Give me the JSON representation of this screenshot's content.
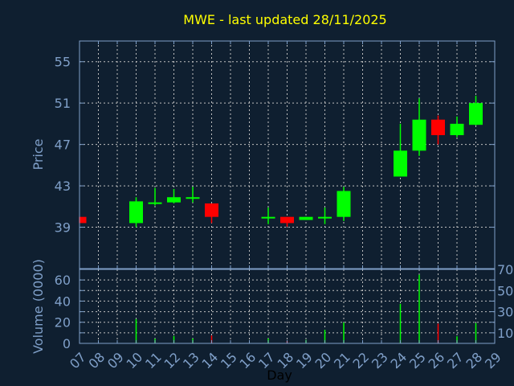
{
  "chart_data": [
    {
      "type": "candlestick",
      "title": "MWE - last updated 28/11/2025",
      "xlabel": "",
      "ylabel": "Price",
      "ylim": [
        35,
        57
      ],
      "yticks": [
        39,
        43,
        47,
        51,
        55
      ],
      "xlim": [
        7,
        29
      ],
      "grid": true,
      "colors": {
        "up": "#00ff00",
        "down": "#ff0000"
      },
      "candles": [
        {
          "day": 7,
          "open": 40.0,
          "high": 40.0,
          "low": 39.4,
          "close": 39.4
        },
        {
          "day": 10,
          "open": 39.4,
          "high": 41.9,
          "low": 39.0,
          "close": 41.5
        },
        {
          "day": 11,
          "open": 41.3,
          "high": 42.8,
          "low": 41.1,
          "close": 41.4
        },
        {
          "day": 12,
          "open": 41.4,
          "high": 42.7,
          "low": 41.3,
          "close": 41.9
        },
        {
          "day": 13,
          "open": 41.8,
          "high": 42.9,
          "low": 41.4,
          "close": 41.9
        },
        {
          "day": 14,
          "open": 41.3,
          "high": 41.3,
          "low": 39.4,
          "close": 40.0
        },
        {
          "day": 17,
          "open": 39.9,
          "high": 40.9,
          "low": 39.3,
          "close": 40.0
        },
        {
          "day": 18,
          "open": 40.0,
          "high": 40.0,
          "low": 39.05,
          "close": 39.4
        },
        {
          "day": 19,
          "open": 39.7,
          "high": 40.0,
          "low": 39.7,
          "close": 40.0
        },
        {
          "day": 20,
          "open": 39.9,
          "high": 40.9,
          "low": 39.3,
          "close": 40.0
        },
        {
          "day": 21,
          "open": 40.0,
          "high": 42.9,
          "low": 39.6,
          "close": 42.5
        },
        {
          "day": 24,
          "open": 43.9,
          "high": 49.0,
          "low": 43.9,
          "close": 46.4
        },
        {
          "day": 25,
          "open": 46.4,
          "high": 51.45,
          "low": 45.9,
          "close": 49.4
        },
        {
          "day": 26,
          "open": 49.4,
          "high": 49.8,
          "low": 47.0,
          "close": 47.9
        },
        {
          "day": 27,
          "open": 47.9,
          "high": 49.7,
          "low": 47.7,
          "close": 49.0
        },
        {
          "day": 28,
          "open": 48.9,
          "high": 51.7,
          "low": 48.85,
          "close": 51.0
        }
      ]
    },
    {
      "type": "bar",
      "xlabel": "Day",
      "ylabel": "Volume (0000)",
      "ylim": [
        0,
        70
      ],
      "yticks": [
        0,
        10,
        20,
        30,
        40,
        50,
        60,
        70
      ],
      "xticks": [
        "07",
        "08",
        "09",
        "10",
        "11",
        "12",
        "13",
        "14",
        "15",
        "16",
        "17",
        "18",
        "19",
        "20",
        "21",
        "22",
        "23",
        "24",
        "25",
        "26",
        "27",
        "28",
        "29"
      ],
      "bars": [
        {
          "day": 10,
          "value": 23,
          "dir": "up"
        },
        {
          "day": 11,
          "value": 4.4,
          "dir": "up"
        },
        {
          "day": 12,
          "value": 7,
          "dir": "up"
        },
        {
          "day": 13,
          "value": 4.6,
          "dir": "up"
        },
        {
          "day": 14,
          "value": 7.4,
          "dir": "down"
        },
        {
          "day": 17,
          "value": 4.6,
          "dir": "up"
        },
        {
          "day": 18,
          "value": 2.3,
          "dir": "down"
        },
        {
          "day": 19,
          "value": 3.3,
          "dir": "up"
        },
        {
          "day": 20,
          "value": 12.8,
          "dir": "up"
        },
        {
          "day": 21,
          "value": 19.7,
          "dir": "up"
        },
        {
          "day": 24,
          "value": 37.4,
          "dir": "up"
        },
        {
          "day": 25,
          "value": 65,
          "dir": "up"
        },
        {
          "day": 26,
          "value": 18.7,
          "dir": "down"
        },
        {
          "day": 27,
          "value": 6.7,
          "dir": "up"
        },
        {
          "day": 28,
          "value": 19.2,
          "dir": "up"
        }
      ]
    }
  ]
}
